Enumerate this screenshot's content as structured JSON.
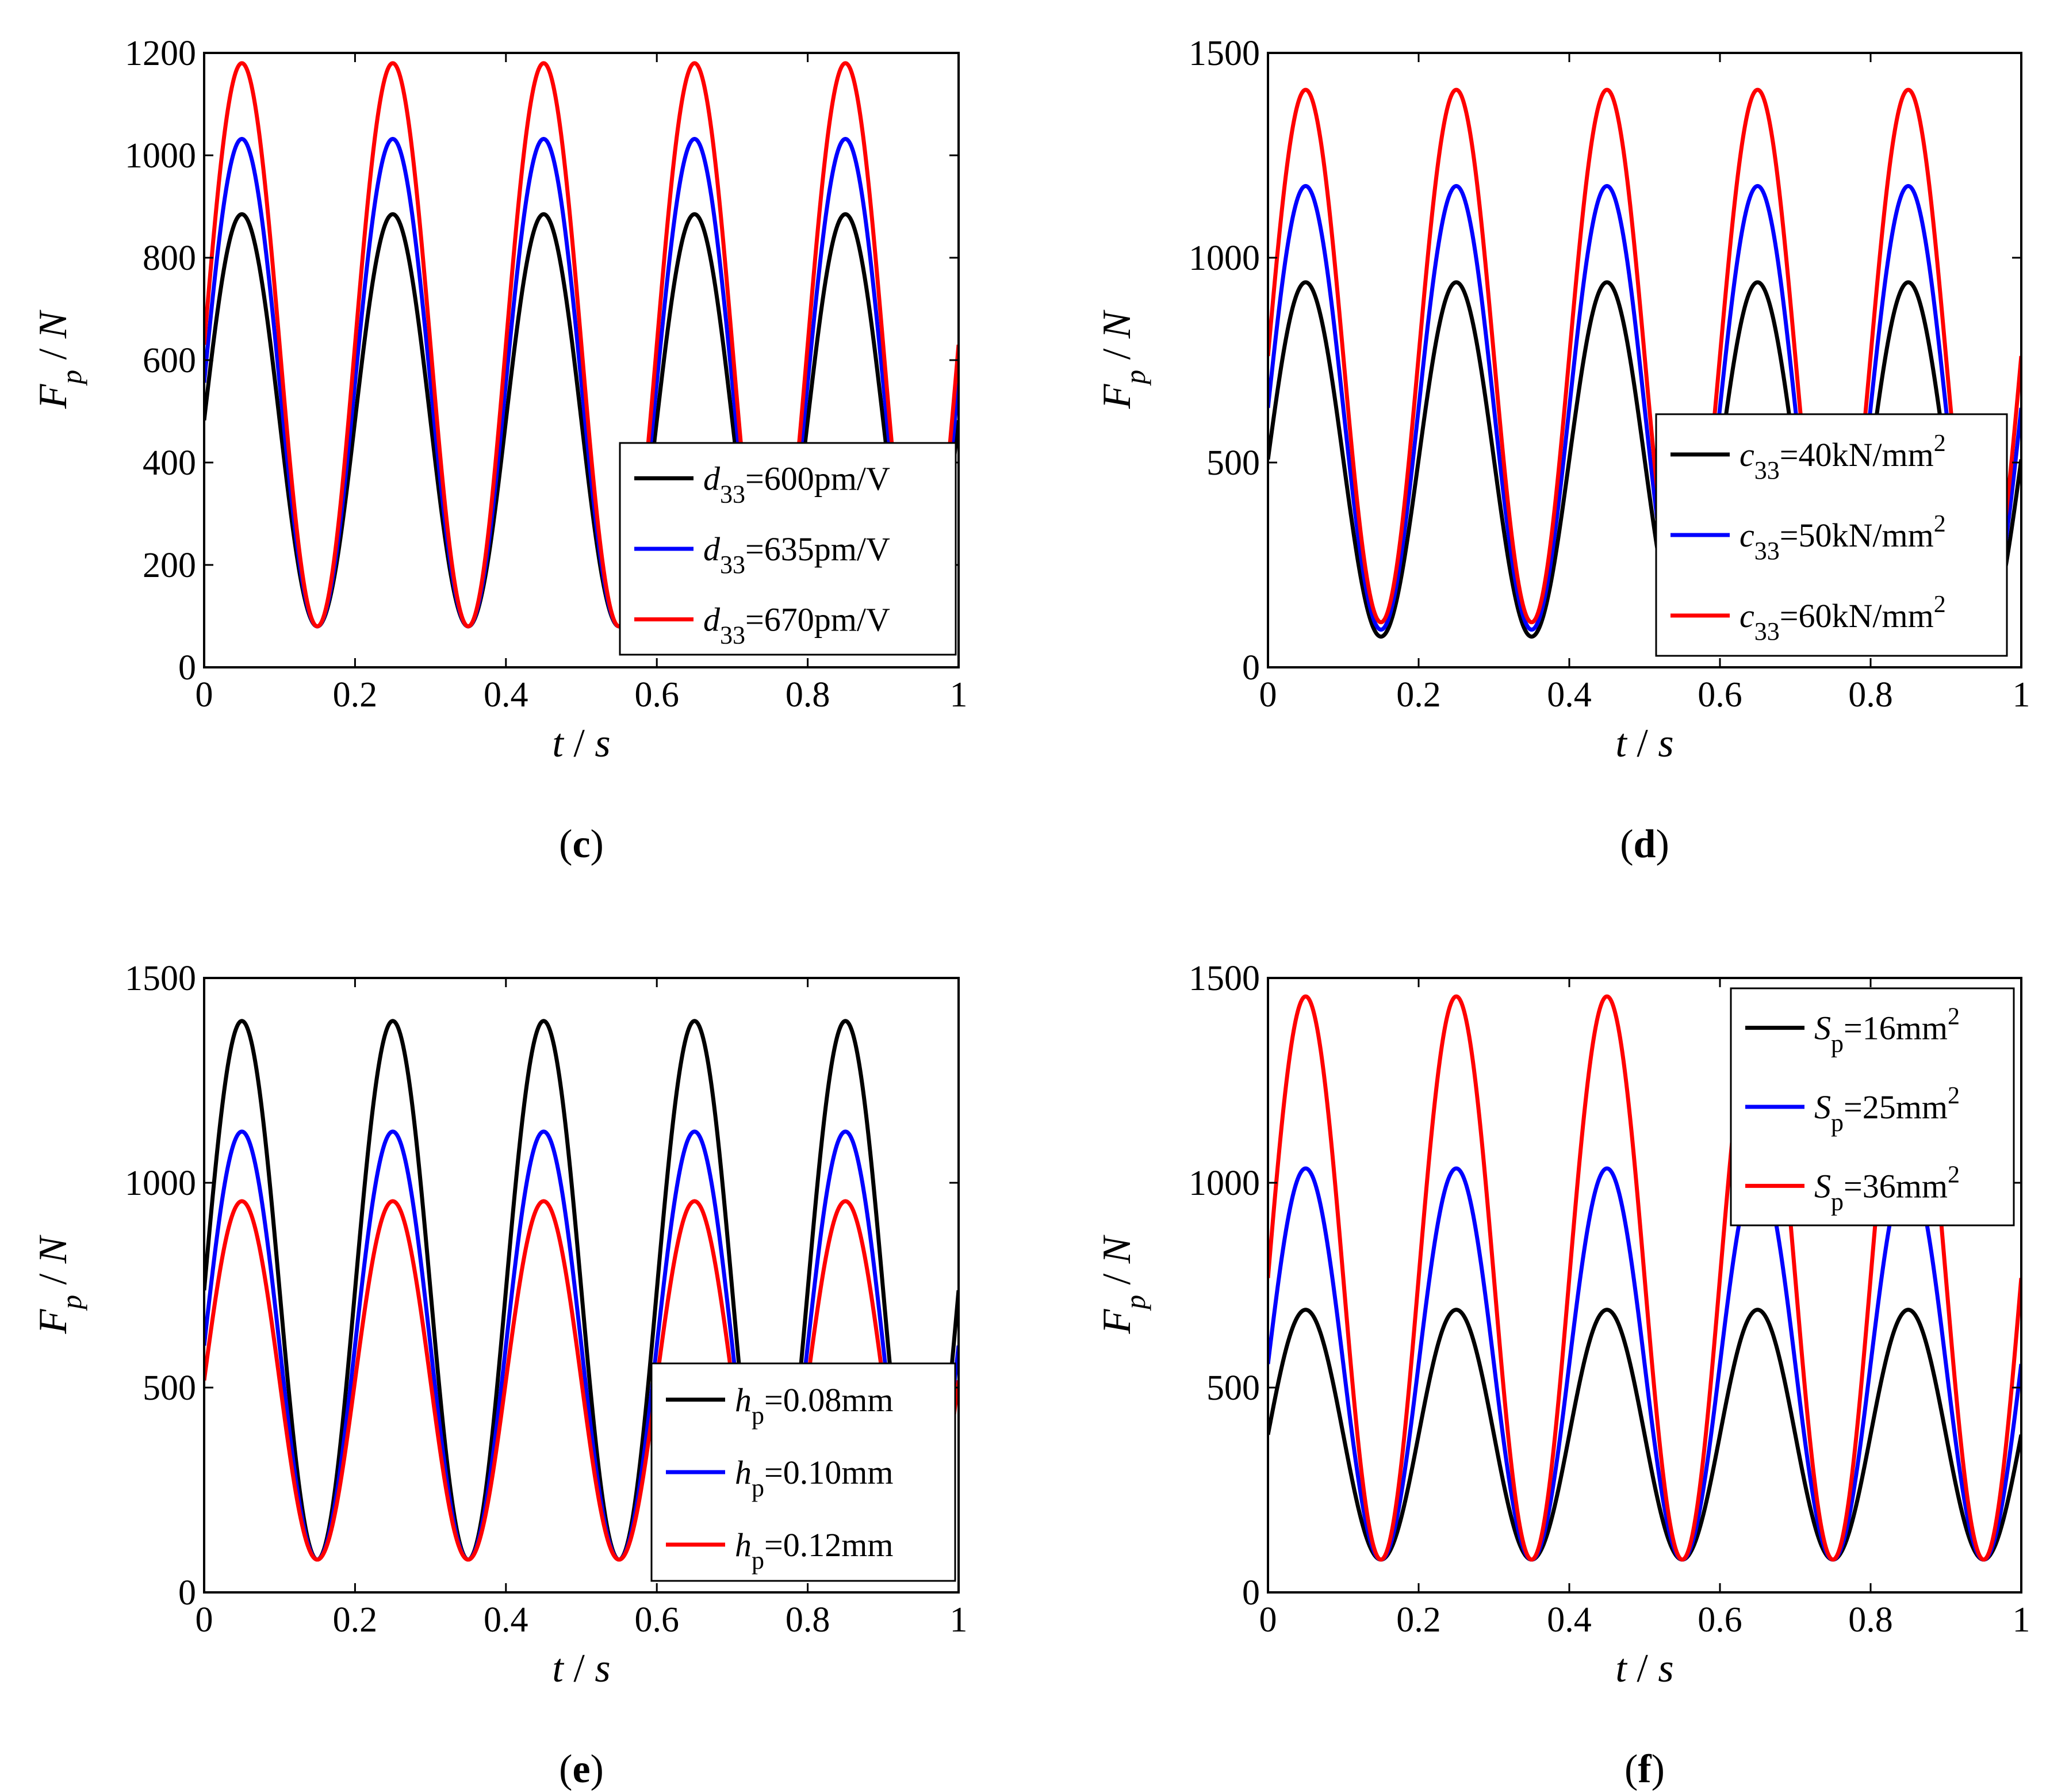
{
  "figure": {
    "panels": [
      {
        "id": "c",
        "caption": "c",
        "legend_position": "bottom-right"
      },
      {
        "id": "d",
        "caption": "d",
        "legend_position": "bottom-right"
      },
      {
        "id": "e",
        "caption": "e",
        "legend_position": "bottom-right"
      },
      {
        "id": "f",
        "caption": "f",
        "legend_position": "top-right"
      }
    ]
  },
  "chart_data": [
    {
      "panel": "c",
      "type": "line",
      "xlabel": {
        "var": "t",
        "unit": "s"
      },
      "ylabel": {
        "var": "F",
        "sub": "p",
        "unit": "N"
      },
      "xlim": [
        0,
        1
      ],
      "ylim": [
        0,
        1200
      ],
      "xticks": [
        "0",
        "0.2",
        "0.4",
        "0.6",
        "0.8",
        "1"
      ],
      "yticks": [
        "0",
        "200",
        "400",
        "600",
        "800",
        "1000",
        "1200"
      ],
      "ytick_values": [
        0,
        200,
        400,
        600,
        800,
        1000,
        1200
      ],
      "period": 0.2,
      "series": [
        {
          "name": "d33=600pm/V",
          "sym": "d",
          "sub": "33",
          "value": "=600pm/V",
          "sup": "",
          "color": "#000000",
          "min": 80,
          "max": 885
        },
        {
          "name": "d33=635pm/V",
          "sym": "d",
          "sub": "33",
          "value": "=635pm/V",
          "sup": "",
          "color": "#0000ff",
          "min": 80,
          "max": 1032
        },
        {
          "name": "d33=670pm/V",
          "sym": "d",
          "sub": "33",
          "value": "=670pm/V",
          "sup": "",
          "color": "#ff0000",
          "min": 80,
          "max": 1180
        }
      ]
    },
    {
      "panel": "d",
      "type": "line",
      "xlabel": {
        "var": "t",
        "unit": "s"
      },
      "ylabel": {
        "var": "F",
        "sub": "p",
        "unit": "N"
      },
      "xlim": [
        0,
        1
      ],
      "ylim": [
        0,
        1500
      ],
      "xticks": [
        "0",
        "0.2",
        "0.4",
        "0.6",
        "0.8",
        "1"
      ],
      "yticks": [
        "0",
        "500",
        "1000",
        "1500"
      ],
      "ytick_values": [
        0,
        500,
        1000,
        1500
      ],
      "period": 0.2,
      "series": [
        {
          "name": "c33=40kN/mm2",
          "sym": "c",
          "sub": "33",
          "value": "=40kN/mm",
          "sup": "2",
          "color": "#000000",
          "min": 75,
          "max": 940
        },
        {
          "name": "c33=50kN/mm2",
          "sym": "c",
          "sub": "33",
          "value": "=50kN/mm",
          "sup": "2",
          "color": "#0000ff",
          "min": 92,
          "max": 1175
        },
        {
          "name": "c33=60kN/mm2",
          "sym": "c",
          "sub": "33",
          "value": "=60kN/mm",
          "sup": "2",
          "color": "#ff0000",
          "min": 110,
          "max": 1410
        }
      ]
    },
    {
      "panel": "e",
      "type": "line",
      "xlabel": {
        "var": "t",
        "unit": "s"
      },
      "ylabel": {
        "var": "F",
        "sub": "p",
        "unit": "N"
      },
      "xlim": [
        0,
        1
      ],
      "ylim": [
        0,
        1500
      ],
      "xticks": [
        "0",
        "0.2",
        "0.4",
        "0.6",
        "0.8",
        "1"
      ],
      "yticks": [
        "0",
        "500",
        "1000",
        "1500"
      ],
      "ytick_values": [
        0,
        500,
        1000,
        1500
      ],
      "period": 0.2,
      "series": [
        {
          "name": "hp=0.08mm",
          "sym": "h",
          "sub": "p",
          "value": "=0.08mm",
          "sup": "",
          "color": "#000000",
          "min": 80,
          "max": 1395
        },
        {
          "name": "hp=0.10mm",
          "sym": "h",
          "sub": "p",
          "value": "=0.10mm",
          "sup": "",
          "color": "#0000ff",
          "min": 80,
          "max": 1125
        },
        {
          "name": "hp=0.12mm",
          "sym": "h",
          "sub": "p",
          "value": "=0.12mm",
          "sup": "",
          "color": "#ff0000",
          "min": 80,
          "max": 955
        }
      ]
    },
    {
      "panel": "f",
      "type": "line",
      "xlabel": {
        "var": "t",
        "unit": "s"
      },
      "ylabel": {
        "var": "F",
        "sub": "p",
        "unit": "N"
      },
      "xlim": [
        0,
        1
      ],
      "ylim": [
        0,
        1500
      ],
      "xticks": [
        "0",
        "0.2",
        "0.4",
        "0.6",
        "0.8",
        "1"
      ],
      "yticks": [
        "0",
        "500",
        "1000",
        "1500"
      ],
      "ytick_values": [
        0,
        500,
        1000,
        1500
      ],
      "period": 0.2,
      "series": [
        {
          "name": "Sp=16mm2",
          "sym": "S",
          "sub": "p",
          "value": "=16mm",
          "sup": "2",
          "color": "#000000",
          "min": 80,
          "max": 690
        },
        {
          "name": "Sp=25mm2",
          "sym": "S",
          "sub": "p",
          "value": "=25mm",
          "sup": "2",
          "color": "#0000ff",
          "min": 80,
          "max": 1035
        },
        {
          "name": "Sp=36mm2",
          "sym": "S",
          "sub": "p",
          "value": "=36mm",
          "sup": "2",
          "color": "#ff0000",
          "min": 80,
          "max": 1455
        }
      ]
    }
  ]
}
